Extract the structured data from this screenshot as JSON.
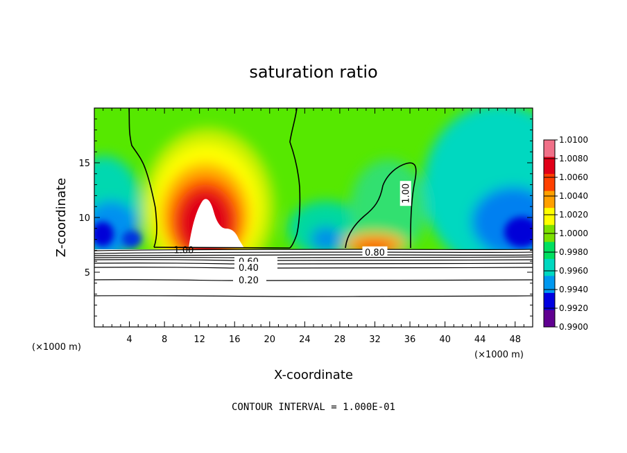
{
  "chart_data": {
    "type": "heatmap",
    "title": "saturation ratio",
    "xlabel": "X-coordinate",
    "ylabel": "Z-coordinate",
    "x_unit_left": "(×1000 m)",
    "x_unit_right": "(×1000 m)",
    "xlim": [
      0,
      50
    ],
    "ylim": [
      0,
      20
    ],
    "x_ticks": [
      4,
      8,
      12,
      16,
      20,
      24,
      28,
      32,
      36,
      40,
      44,
      48
    ],
    "y_ticks": [
      5,
      10,
      15
    ],
    "colorbar_levels": [
      "1.0100",
      "1.0080",
      "1.0060",
      "1.0040",
      "1.0020",
      "1.0000",
      "0.9980",
      "0.9960",
      "0.9940",
      "0.9920",
      "0.9900"
    ],
    "colorbar_colors": [
      "#f07088",
      "#e00018",
      "#ff4000",
      "#ffa000",
      "#ffff00",
      "#7ce000",
      "#00e060",
      "#00d8c0",
      "#0098f0",
      "#0000e0",
      "#600090"
    ],
    "contour_labels": [
      {
        "text": "1.00",
        "x": 10.2,
        "y": 7.05
      },
      {
        "text": "0.60",
        "x": 17.6,
        "y": 6.0
      },
      {
        "text": "0.40",
        "x": 17.6,
        "y": 5.45
      },
      {
        "text": "0.20",
        "x": 17.6,
        "y": 4.3
      },
      {
        "text": "0.80",
        "x": 32.0,
        "y": 6.85
      },
      {
        "text": "1.00",
        "x": 35.5,
        "y": 12.2
      }
    ],
    "footer": "CONTOUR INTERVAL = 1.000E-01"
  }
}
